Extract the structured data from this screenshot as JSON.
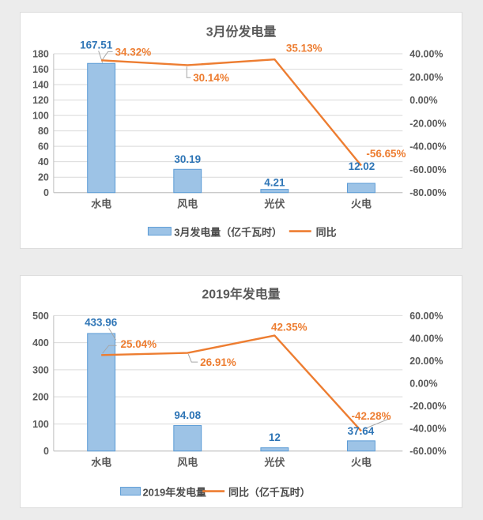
{
  "page": {
    "background_color": "#ececec",
    "card_background": "#ffffff",
    "card_border": "#dcdcdc"
  },
  "colors": {
    "bar_fill": "#9dc3e6",
    "bar_border": "#5b9bd5",
    "line": "#ed7d31",
    "bar_label": "#2e75b6",
    "line_label": "#ed7d31",
    "axis_text": "#595959",
    "gridline": "#d9d9d9",
    "axis_line": "#bfbfbf",
    "leader": "#a6a6a6"
  },
  "chart_data": [
    {
      "type": "bar",
      "subtype": "bar-line-combo",
      "title": "3月份发电量",
      "categories": [
        "水电",
        "风电",
        "光伏",
        "火电"
      ],
      "series": [
        {
          "name": "3月发电量（亿千瓦时）",
          "kind": "bar",
          "axis": "left",
          "values": [
            167.51,
            30.19,
            4.21,
            12.02
          ],
          "labels": [
            "167.51",
            "30.19",
            "4.21",
            "12.02"
          ]
        },
        {
          "name": "同比",
          "kind": "line",
          "axis": "right",
          "values": [
            34.32,
            30.14,
            35.13,
            -56.65
          ],
          "labels": [
            "34.32%",
            "30.14%",
            "35.13%",
            "-56.65%"
          ]
        }
      ],
      "left_axis": {
        "min": 0,
        "max": 180,
        "step": 20,
        "ticks": [
          "180",
          "160",
          "140",
          "120",
          "100",
          "80",
          "60",
          "40",
          "20",
          "0"
        ]
      },
      "right_axis": {
        "min": -80,
        "max": 40,
        "step": 20,
        "ticks": [
          "40.00%",
          "20.00%",
          "0.00%",
          "-20.00%",
          "-40.00%",
          "-60.00%",
          "-80.00%"
        ]
      },
      "grid": true,
      "legend_position": "bottom",
      "legend": [
        {
          "swatch": "bar",
          "label": "3月发电量（亿千瓦时）"
        },
        {
          "swatch": "line",
          "label": "同比"
        }
      ]
    },
    {
      "type": "bar",
      "subtype": "bar-line-combo",
      "title": "2019年发电量",
      "categories": [
        "水电",
        "风电",
        "光伏",
        "火电"
      ],
      "series": [
        {
          "name": "2019年发电量",
          "kind": "bar",
          "axis": "left",
          "values": [
            433.96,
            94.08,
            12,
            37.64
          ],
          "labels": [
            "433.96",
            "94.08",
            "12",
            "37.64"
          ]
        },
        {
          "name": "同比（亿千瓦时）",
          "kind": "line",
          "axis": "right",
          "values": [
            25.04,
            26.91,
            42.35,
            -42.28
          ],
          "labels": [
            "25.04%",
            "26.91%",
            "42.35%",
            "-42.28%"
          ]
        }
      ],
      "left_axis": {
        "min": 0,
        "max": 500,
        "step": 100,
        "ticks": [
          "500",
          "400",
          "300",
          "200",
          "100",
          "0"
        ]
      },
      "right_axis": {
        "min": -60,
        "max": 60,
        "step": 20,
        "ticks": [
          "60.00%",
          "40.00%",
          "20.00%",
          "0.00%",
          "-20.00%",
          "-40.00%",
          "-60.00%"
        ]
      },
      "grid": true,
      "legend_position": "bottom",
      "legend": [
        {
          "swatch": "bar",
          "label": "2019年发电量"
        },
        {
          "swatch": "line",
          "label": "同比（亿千瓦时）"
        }
      ]
    }
  ]
}
